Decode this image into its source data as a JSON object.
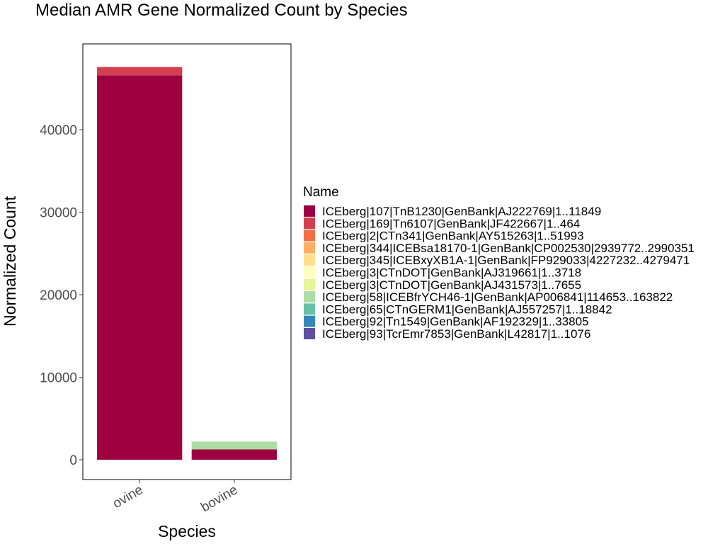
{
  "chart_data": {
    "type": "bar",
    "stacked": true,
    "title": "Median AMR Gene Normalized Count by Species",
    "xlabel": "Species",
    "ylabel": "Normalized Count",
    "ylim": [
      -2400,
      50400
    ],
    "yticks": [
      0,
      10000,
      20000,
      30000,
      40000
    ],
    "yticks_labels": [
      "0",
      "10000",
      "20000",
      "30000",
      "40000"
    ],
    "categories": [
      "ovine",
      "bovine"
    ],
    "grid": false,
    "legend": {
      "title": "Name",
      "position": "right"
    },
    "series": [
      {
        "name": "ICEberg|107|TnB1230|GenBank|AJ222769|1..11849",
        "color": "#9E0142",
        "values": [
          46600,
          1250
        ]
      },
      {
        "name": "ICEberg|169|Tn6107|GenBank|JF422667|1..464",
        "color": "#D53E4F",
        "values": [
          1000,
          0
        ]
      },
      {
        "name": "ICEberg|2|CTn341|GenBank|AY515263|1..51993",
        "color": "#F46D43",
        "values": [
          0,
          0
        ]
      },
      {
        "name": "ICEberg|344|ICEBsa18170-1|GenBank|CP002530|2939772..2990351",
        "color": "#FDAE61",
        "values": [
          0,
          0
        ]
      },
      {
        "name": "ICEberg|345|ICEBxyXB1A-1|GenBank|FP929033|4227232..4279471",
        "color": "#FEE08B",
        "values": [
          0,
          0
        ]
      },
      {
        "name": "ICEberg|3|CTnDOT|GenBank|AJ319661|1..3718",
        "color": "#FFFFBF",
        "values": [
          0,
          0
        ]
      },
      {
        "name": "ICEberg|3|CTnDOT|GenBank|AJ431573|1..7655",
        "color": "#E6F598",
        "values": [
          0,
          0
        ]
      },
      {
        "name": "ICEberg|58|ICEBfrYCH46-1|GenBank|AP006841|114653..163822",
        "color": "#ABDDA4",
        "values": [
          0,
          950
        ]
      },
      {
        "name": "ICEberg|65|CTnGERM1|GenBank|AJ557257|1..18842",
        "color": "#66C2A5",
        "values": [
          0,
          0
        ]
      },
      {
        "name": "ICEberg|92|Tn1549|GenBank|AF192329|1..33805",
        "color": "#3288BD",
        "values": [
          0,
          0
        ]
      },
      {
        "name": "ICEberg|93|TcrEmr7853|GenBank|L42817|1..1076",
        "color": "#5E4FA2",
        "values": [
          0,
          0
        ]
      }
    ]
  }
}
